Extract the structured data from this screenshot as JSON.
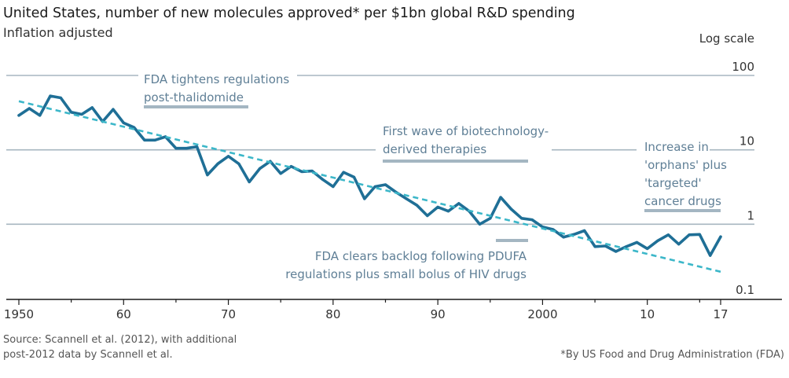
{
  "title": "United States, number of new molecules approved* per $1bn global R&D spending",
  "subtitle": "Inflation adjusted",
  "scale_note": "Log scale",
  "source": [
    "Source: Scannell et al. (2012), with additional",
    "post-2012 data by Scannell et al."
  ],
  "footnote": "*By US Food and Drug Administration (FDA)",
  "colors": {
    "series": "#1f6f96",
    "trend": "#3cb7c9",
    "annotation": "#5f7f96",
    "annotation_bar": "#a4b6c2",
    "grid": "#a7b6c0"
  },
  "chart_data": {
    "type": "line",
    "y_scale": "log",
    "ylim": [
      0.1,
      100
    ],
    "xlim": [
      1950,
      2017
    ],
    "x_ticks": [
      {
        "value": 1950,
        "label": "1950"
      },
      {
        "value": 1960,
        "label": "60"
      },
      {
        "value": 1970,
        "label": "70"
      },
      {
        "value": 1980,
        "label": "80"
      },
      {
        "value": 1990,
        "label": "90"
      },
      {
        "value": 2000,
        "label": "2000"
      },
      {
        "value": 2010,
        "label": "10"
      },
      {
        "value": 2017,
        "label": "17"
      }
    ],
    "y_ticks": [
      {
        "value": 100,
        "label": "100"
      },
      {
        "value": 10,
        "label": "10"
      },
      {
        "value": 1,
        "label": "1"
      },
      {
        "value": 0.1,
        "label": "0.1"
      }
    ],
    "series": [
      {
        "style": "solid",
        "x": [
          1950,
          1951,
          1952,
          1953,
          1954,
          1955,
          1956,
          1957,
          1958,
          1959,
          1960,
          1961,
          1962,
          1963,
          1964,
          1965,
          1966,
          1967,
          1968,
          1969,
          1970,
          1971,
          1972,
          1973,
          1974,
          1975,
          1976,
          1977,
          1978,
          1979,
          1980,
          1981,
          1982,
          1983,
          1984,
          1985,
          1986,
          1987,
          1988,
          1989,
          1990,
          1991,
          1992,
          1993,
          1994,
          1995,
          1996,
          1997,
          1998,
          1999,
          2000,
          2001,
          2002,
          2003,
          2004,
          2005,
          2006,
          2007,
          2008,
          2009,
          2010,
          2011,
          2012,
          2013,
          2014,
          2015,
          2016,
          2017
        ],
        "y": [
          29,
          36,
          29,
          53,
          50,
          32,
          30,
          37,
          24,
          35,
          23,
          20,
          13.5,
          13.5,
          15,
          10.5,
          10.5,
          11,
          4.6,
          6.5,
          8.2,
          6.5,
          3.7,
          5.6,
          7,
          4.8,
          6,
          5.1,
          5.2,
          4,
          3.2,
          5,
          4.3,
          2.2,
          3.2,
          3.4,
          2.7,
          2.2,
          1.8,
          1.3,
          1.7,
          1.5,
          1.9,
          1.5,
          1,
          1.2,
          2.3,
          1.6,
          1.2,
          1.15,
          0.92,
          0.85,
          0.67,
          0.73,
          0.82,
          0.5,
          0.51,
          0.43,
          0.5,
          0.57,
          0.47,
          0.6,
          0.72,
          0.54,
          0.72,
          0.73,
          0.38,
          0.68
        ]
      },
      {
        "style": "dashed",
        "x": [
          1950,
          2017
        ],
        "y": [
          45,
          0.23
        ]
      }
    ]
  },
  "annotations": [
    {
      "lines": [
        "FDA tightens regulations",
        "post-thalidomide"
      ]
    },
    {
      "lines": [
        "First wave of biotechnology-",
        "derived therapies"
      ]
    },
    {
      "lines": [
        "Increase in",
        "'orphans' plus",
        "'targeted'",
        "cancer drugs"
      ]
    },
    {
      "lines": [
        "FDA clears backlog following PDUFA",
        "regulations plus small bolus of HIV drugs"
      ]
    }
  ]
}
